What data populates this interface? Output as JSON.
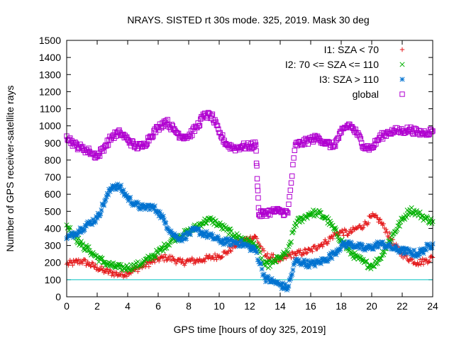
{
  "chart_data": {
    "type": "scatter",
    "title": "NRAYS. SISTED rt 30s mode. 325, 2019. Mask 30 deg",
    "xlabel": "GPS time [hours of doy 325, 2019]",
    "ylabel": "Number of GPS receiver-satellite rays",
    "xlim": [
      0,
      24
    ],
    "ylim": [
      0,
      1500
    ],
    "xticks": [
      0,
      2,
      4,
      6,
      8,
      10,
      12,
      14,
      16,
      18,
      20,
      22,
      24
    ],
    "yticks": [
      0,
      100,
      200,
      300,
      400,
      500,
      600,
      700,
      800,
      900,
      1000,
      1100,
      1200,
      1300,
      1400,
      1500
    ],
    "threshold_line": {
      "y": 100,
      "color": "#00c0c0"
    },
    "legend_position": "top-right",
    "colors": {
      "I1": "#e41a1c",
      "I2": "#00b000",
      "I3": "#0072d0",
      "global": "#b000d0"
    },
    "series": [
      {
        "key": "I1",
        "name": "I1: SZA < 70",
        "marker": "plus",
        "x": [
          0,
          0.5,
          1,
          1.5,
          2,
          2.5,
          3,
          3.5,
          4,
          4.5,
          5,
          5.5,
          6,
          6.5,
          7,
          7.5,
          8,
          8.5,
          9,
          9.5,
          10,
          10.5,
          11,
          11.5,
          12,
          12.4,
          13,
          13.5,
          14,
          14.5,
          15,
          15.5,
          16,
          16.5,
          17,
          17.5,
          18,
          18.5,
          19,
          19.5,
          20,
          20.5,
          21,
          21.5,
          22,
          22.5,
          23,
          23.5,
          24
        ],
        "y": [
          190,
          200,
          210,
          190,
          170,
          150,
          140,
          130,
          140,
          160,
          180,
          200,
          220,
          230,
          220,
          200,
          210,
          210,
          220,
          230,
          240,
          260,
          300,
          330,
          340,
          350,
          240,
          230,
          210,
          240,
          250,
          260,
          270,
          300,
          320,
          360,
          380,
          370,
          400,
          420,
          470,
          450,
          380,
          300,
          250,
          220,
          200,
          210,
          230
        ]
      },
      {
        "key": "I2",
        "name": "I2: 70 <= SZA <= 110",
        "marker": "cross",
        "x": [
          0,
          0.5,
          1,
          1.5,
          2,
          2.5,
          3,
          3.5,
          4,
          4.5,
          5,
          5.5,
          6,
          6.5,
          7,
          7.5,
          8,
          8.5,
          9,
          9.5,
          10,
          10.5,
          11,
          11.5,
          12,
          12.4,
          13,
          13.5,
          14,
          14.5,
          15,
          15.5,
          16,
          16.5,
          17,
          17.5,
          18,
          18.5,
          19,
          19.5,
          20,
          20.5,
          21,
          21.5,
          22,
          22.5,
          23,
          23.5,
          24
        ],
        "y": [
          420,
          360,
          300,
          270,
          230,
          200,
          180,
          170,
          170,
          180,
          200,
          230,
          260,
          300,
          340,
          360,
          380,
          410,
          440,
          450,
          420,
          390,
          360,
          340,
          320,
          300,
          180,
          200,
          230,
          260,
          430,
          460,
          490,
          490,
          460,
          400,
          330,
          270,
          230,
          200,
          180,
          220,
          300,
          380,
          450,
          510,
          490,
          460,
          440
        ]
      },
      {
        "key": "I3",
        "name": "I3: SZA > 110",
        "marker": "star",
        "x": [
          0,
          0.5,
          1,
          1.5,
          2,
          2.5,
          3,
          3.5,
          4,
          4.5,
          5,
          5.5,
          6,
          6.5,
          7,
          7.5,
          8,
          8.5,
          9,
          9.5,
          10,
          10.5,
          11,
          11.5,
          12,
          12.4,
          13,
          13.5,
          14,
          14.5,
          15,
          15.5,
          16,
          16.5,
          17,
          17.5,
          18,
          18.5,
          19,
          19.5,
          20,
          20.5,
          21,
          21.5,
          22,
          22.5,
          23,
          23.5,
          24
        ],
        "y": [
          340,
          370,
          400,
          430,
          460,
          560,
          650,
          640,
          580,
          540,
          520,
          530,
          500,
          430,
          360,
          340,
          370,
          390,
          370,
          350,
          330,
          320,
          320,
          310,
          290,
          270,
          110,
          90,
          70,
          50,
          210,
          200,
          190,
          200,
          220,
          250,
          300,
          310,
          300,
          280,
          290,
          310,
          300,
          280,
          270,
          260,
          250,
          280,
          310
        ]
      },
      {
        "key": "global",
        "name": "global",
        "marker": "square",
        "x": [
          0,
          0.5,
          1,
          1.5,
          2,
          2.5,
          3,
          3.5,
          4,
          4.5,
          5,
          5.5,
          6,
          6.5,
          7,
          7.5,
          8,
          8.5,
          9,
          9.5,
          10,
          10.5,
          11,
          11.5,
          12,
          12.4,
          12.6,
          13,
          13.5,
          14,
          14.5,
          15,
          15.5,
          16,
          16.5,
          17,
          17.5,
          18,
          18.5,
          19,
          19.5,
          20,
          20.5,
          21,
          21.5,
          22,
          22.5,
          23,
          23.5,
          24
        ],
        "y": [
          940,
          890,
          870,
          850,
          820,
          880,
          940,
          960,
          920,
          880,
          880,
          940,
          990,
          1030,
          980,
          940,
          940,
          990,
          1060,
          1060,
          960,
          890,
          870,
          880,
          880,
          890,
          480,
          490,
          500,
          500,
          490,
          890,
          900,
          920,
          930,
          900,
          880,
          960,
          1010,
          960,
          880,
          870,
          930,
          960,
          970,
          970,
          980,
          960,
          960,
          970
        ]
      }
    ]
  }
}
